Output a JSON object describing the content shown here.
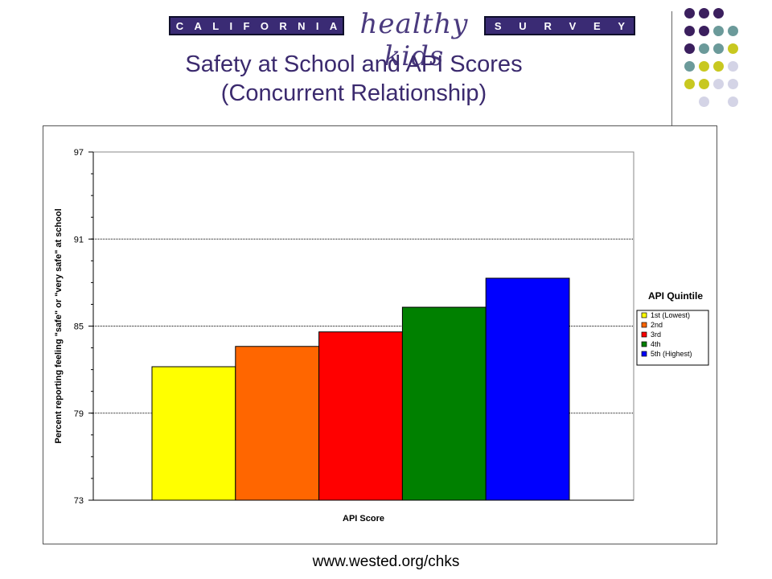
{
  "banner": {
    "left_letters": [
      "C",
      "A",
      "L",
      "I",
      "F",
      "O",
      "R",
      "N",
      "I",
      "A"
    ],
    "middle_text": "healthy kids",
    "right_letters": [
      "S",
      "U",
      "R",
      "V",
      "E",
      "Y"
    ]
  },
  "title_line1": "Safety at School and API Scores",
  "title_line2": "(Concurrent Relationship)",
  "chart_data": {
    "type": "bar",
    "xlabel": "API Score",
    "ylabel": "Percent reporting feeling \"safe\" or \"very safe\" at school",
    "ylim": [
      73,
      97
    ],
    "yticks": [
      73,
      79,
      85,
      91,
      97
    ],
    "grid": true,
    "legend_title": "API Quintile",
    "legend_position": "right",
    "series": [
      {
        "name": "1st (Lowest)",
        "value": 82.2,
        "color": "#ffff00"
      },
      {
        "name": "2nd",
        "value": 83.6,
        "color": "#ff6600"
      },
      {
        "name": "3rd",
        "value": 84.6,
        "color": "#ff0000"
      },
      {
        "name": "4th",
        "value": 86.3,
        "color": "#008000"
      },
      {
        "name": "5th (Highest)",
        "value": 88.3,
        "color": "#0000ff"
      }
    ]
  },
  "footer_url": "www.wested.org/chks",
  "colors": {
    "title": "#3b2a6e",
    "banner_bg": "#3a2b74",
    "dot_purple": "#3b1f5e",
    "dot_teal": "#6b9a9a",
    "dot_olive": "#c8c820",
    "dot_lavender": "#d4d4e6"
  }
}
